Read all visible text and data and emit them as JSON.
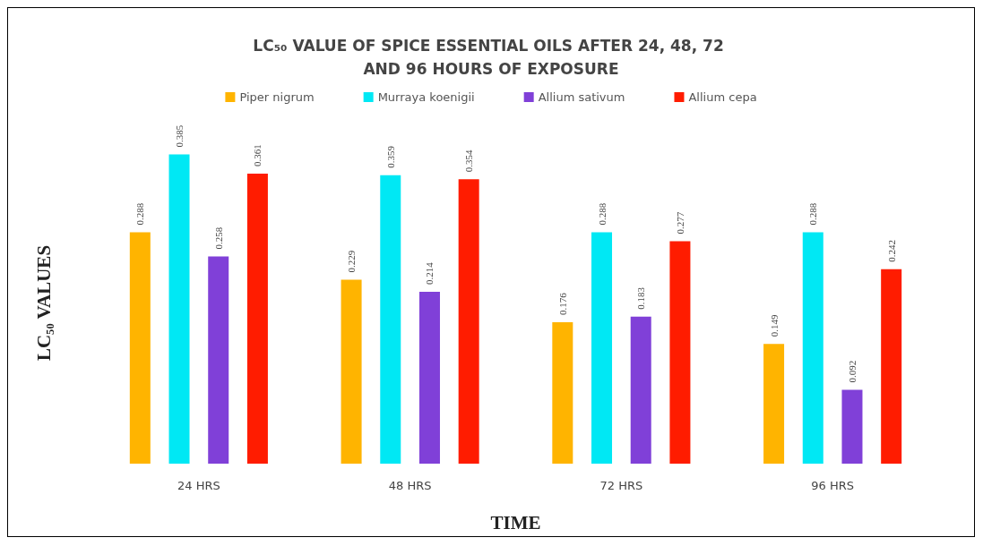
{
  "chart_data": {
    "type": "bar",
    "title": "LC₅₀ VALUE OF SPICE ESSENTIAL OILS AFTER 24, 48, 72 AND 96 HOURS OF EXPOSURE",
    "xlabel": "TIME",
    "ylabel": "LC₅₀ VALUES",
    "categories": [
      "24 HRS",
      "48 HRS",
      "72 HRS",
      "96 HRS"
    ],
    "series": [
      {
        "name": "Piper nigrum",
        "color": "#ffb400",
        "values": [
          0.288,
          0.229,
          0.176,
          0.149
        ]
      },
      {
        "name": "Murraya koenigii",
        "color": "#00e8f4",
        "values": [
          0.385,
          0.359,
          0.288,
          0.288
        ]
      },
      {
        "name": "Allium sativum",
        "color": "#8040d8",
        "values": [
          0.258,
          0.214,
          0.183,
          0.092
        ]
      },
      {
        "name": "Allium cepa",
        "color": "#ff1c00",
        "values": [
          0.361,
          0.354,
          0.277,
          0.242
        ]
      }
    ],
    "data_labels": true,
    "legend": "top",
    "grid": false,
    "tick_labels": "x"
  }
}
